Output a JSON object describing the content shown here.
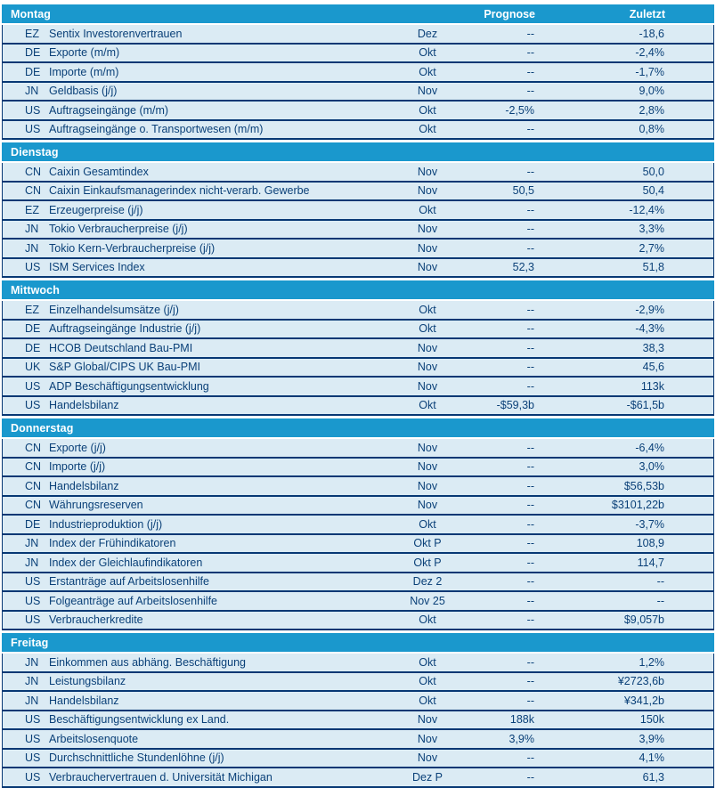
{
  "colors": {
    "band_blue": "#1a98cd",
    "row_bg": "#dbebf4",
    "border_navy": "#073874",
    "text_navy": "#0a4078"
  },
  "column_headers": {
    "prognose": "Prognose",
    "zuletzt": "Zuletzt"
  },
  "sections": [
    {
      "day": "Montag",
      "rows": [
        {
          "country": "EZ",
          "indicator": "Sentix Investorenvertrauen",
          "period": "Dez",
          "prognose": "--",
          "zuletzt": "-18,6"
        },
        {
          "country": "DE",
          "indicator": "Exporte (m/m)",
          "period": "Okt",
          "prognose": "--",
          "zuletzt": "-2,4%"
        },
        {
          "country": "DE",
          "indicator": "Importe (m/m)",
          "period": "Okt",
          "prognose": "--",
          "zuletzt": "-1,7%"
        },
        {
          "country": "JN",
          "indicator": "Geldbasis (j/j)",
          "period": "Nov",
          "prognose": "--",
          "zuletzt": "9,0%"
        },
        {
          "country": "US",
          "indicator": "Auftragseingänge (m/m)",
          "period": "Okt",
          "prognose": "-2,5%",
          "zuletzt": "2,8%"
        },
        {
          "country": "US",
          "indicator": "Auftragseingänge o. Transportwesen (m/m)",
          "period": "Okt",
          "prognose": "--",
          "zuletzt": "0,8%"
        }
      ]
    },
    {
      "day": "Dienstag",
      "rows": [
        {
          "country": "CN",
          "indicator": "Caixin Gesamtindex",
          "period": "Nov",
          "prognose": "--",
          "zuletzt": "50,0"
        },
        {
          "country": "CN",
          "indicator": "Caixin Einkaufsmanagerindex nicht-verarb. Gewerbe",
          "period": "Nov",
          "prognose": "50,5",
          "zuletzt": "50,4"
        },
        {
          "country": "EZ",
          "indicator": "Erzeugerpreise (j/j)",
          "period": "Okt",
          "prognose": "--",
          "zuletzt": "-12,4%"
        },
        {
          "country": "JN",
          "indicator": "Tokio Verbraucherpreise (j/j)",
          "period": "Nov",
          "prognose": "--",
          "zuletzt": "3,3%"
        },
        {
          "country": "JN",
          "indicator": "Tokio Kern-Verbraucherpreise (j/j)",
          "period": "Nov",
          "prognose": "--",
          "zuletzt": "2,7%"
        },
        {
          "country": "US",
          "indicator": "ISM Services Index",
          "period": "Nov",
          "prognose": "52,3",
          "zuletzt": "51,8"
        }
      ]
    },
    {
      "day": "Mittwoch",
      "rows": [
        {
          "country": "EZ",
          "indicator": "Einzelhandelsumsätze (j/j)",
          "period": "Okt",
          "prognose": "--",
          "zuletzt": "-2,9%"
        },
        {
          "country": "DE",
          "indicator": "Auftragseingänge Industrie (j/j)",
          "period": "Okt",
          "prognose": "--",
          "zuletzt": "-4,3%"
        },
        {
          "country": "DE",
          "indicator": "HCOB Deutschland Bau-PMI",
          "period": "Nov",
          "prognose": "--",
          "zuletzt": "38,3"
        },
        {
          "country": "UK",
          "indicator": "S&P Global/CIPS UK Bau-PMI",
          "period": "Nov",
          "prognose": "--",
          "zuletzt": "45,6"
        },
        {
          "country": "US",
          "indicator": "ADP Beschäftigungsentwicklung",
          "period": "Nov",
          "prognose": "--",
          "zuletzt": "113k"
        },
        {
          "country": "US",
          "indicator": "Handelsbilanz",
          "period": "Okt",
          "prognose": "-$59,3b",
          "zuletzt": "-$61,5b"
        }
      ]
    },
    {
      "day": "Donnerstag",
      "rows": [
        {
          "country": "CN",
          "indicator": "Exporte (j/j)",
          "period": "Nov",
          "prognose": "--",
          "zuletzt": "-6,4%"
        },
        {
          "country": "CN",
          "indicator": "Importe (j/j)",
          "period": "Nov",
          "prognose": "--",
          "zuletzt": "3,0%"
        },
        {
          "country": "CN",
          "indicator": "Handelsbilanz",
          "period": "Nov",
          "prognose": "--",
          "zuletzt": "$56,53b"
        },
        {
          "country": "CN",
          "indicator": "Währungsreserven",
          "period": "Nov",
          "prognose": "--",
          "zuletzt": "$3101,22b"
        },
        {
          "country": "DE",
          "indicator": "Industrieproduktion (j/j)",
          "period": "Okt",
          "prognose": "--",
          "zuletzt": "-3,7%"
        },
        {
          "country": "JN",
          "indicator": "Index der Frühindikatoren",
          "period": "Okt P",
          "prognose": "--",
          "zuletzt": "108,9"
        },
        {
          "country": "JN",
          "indicator": "Index der Gleichlaufindikatoren",
          "period": "Okt P",
          "prognose": "--",
          "zuletzt": "114,7"
        },
        {
          "country": "US",
          "indicator": "Erstanträge auf Arbeitslosenhilfe",
          "period": "Dez 2",
          "prognose": "--",
          "zuletzt": "--"
        },
        {
          "country": "US",
          "indicator": "Folgeanträge auf Arbeitslosenhilfe",
          "period": "Nov 25",
          "prognose": "--",
          "zuletzt": "--"
        },
        {
          "country": "US",
          "indicator": "Verbraucherkredite",
          "period": "Okt",
          "prognose": "--",
          "zuletzt": "$9,057b"
        }
      ]
    },
    {
      "day": "Freitag",
      "rows": [
        {
          "country": "JN",
          "indicator": "Einkommen aus abhäng. Beschäftigung",
          "period": "Okt",
          "prognose": "--",
          "zuletzt": "1,2%"
        },
        {
          "country": "JN",
          "indicator": "Leistungsbilanz",
          "period": "Okt",
          "prognose": "--",
          "zuletzt": "¥2723,6b"
        },
        {
          "country": "JN",
          "indicator": "Handelsbilanz",
          "period": "Okt",
          "prognose": "--",
          "zuletzt": "¥341,2b"
        },
        {
          "country": "US",
          "indicator": "Beschäftigungsentwicklung ex Land.",
          "period": "Nov",
          "prognose": "188k",
          "zuletzt": "150k"
        },
        {
          "country": "US",
          "indicator": "Arbeitslosenquote",
          "period": "Nov",
          "prognose": "3,9%",
          "zuletzt": "3,9%"
        },
        {
          "country": "US",
          "indicator": "Durchschnittliche Stundenlöhne (j/j)",
          "period": "Nov",
          "prognose": "--",
          "zuletzt": "4,1%"
        },
        {
          "country": "US",
          "indicator": "Verbrauchervertrauen d. Universität Michigan",
          "period": "Dez P",
          "prognose": "--",
          "zuletzt": "61,3"
        }
      ]
    }
  ]
}
